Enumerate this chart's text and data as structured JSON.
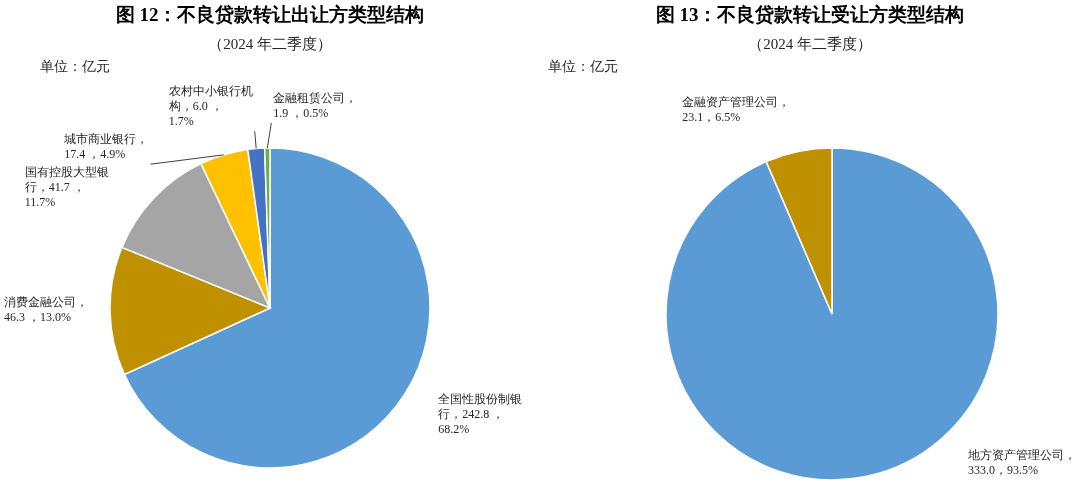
{
  "chart_data": [
    {
      "type": "pie",
      "title": "图 12：不良贷款转让出让方类型结构",
      "subtitle": "（2024 年二季度）",
      "annotations": [
        "单位：亿元"
      ],
      "categories": [
        "全国性股份制银行",
        "消费金融公司",
        "国有控股大型银行",
        "城市商业银行",
        "农村中小银行机构",
        "金融租赁公司"
      ],
      "values": [
        242.8,
        46.3,
        41.7,
        17.4,
        6.0,
        1.9
      ],
      "value_labels": [
        "，242.8 ，68.2%",
        "，46.3 ，13.0%",
        "，41.7 ，11.7%",
        "，17.4 ，4.9%",
        "，6.0 ，1.7%",
        "，1.9 ，0.5%"
      ],
      "colors": [
        "#5b9bd5",
        "#bf9000",
        "#a5a5a5",
        "#ffc000",
        "#4472c4",
        "#70ad47"
      ]
    },
    {
      "type": "pie",
      "title": "图 13：不良贷款转让受让方类型结构",
      "subtitle": "（2024 年二季度）",
      "annotations": [
        "单位：亿元"
      ],
      "categories": [
        "地方资产管理公司",
        "金融资产管理公司"
      ],
      "values": [
        333.0,
        23.1
      ],
      "value_labels": [
        "，333.0，93.5%",
        "，23.1，6.5%"
      ],
      "colors": [
        "#5b9bd5",
        "#bf9000"
      ]
    }
  ]
}
